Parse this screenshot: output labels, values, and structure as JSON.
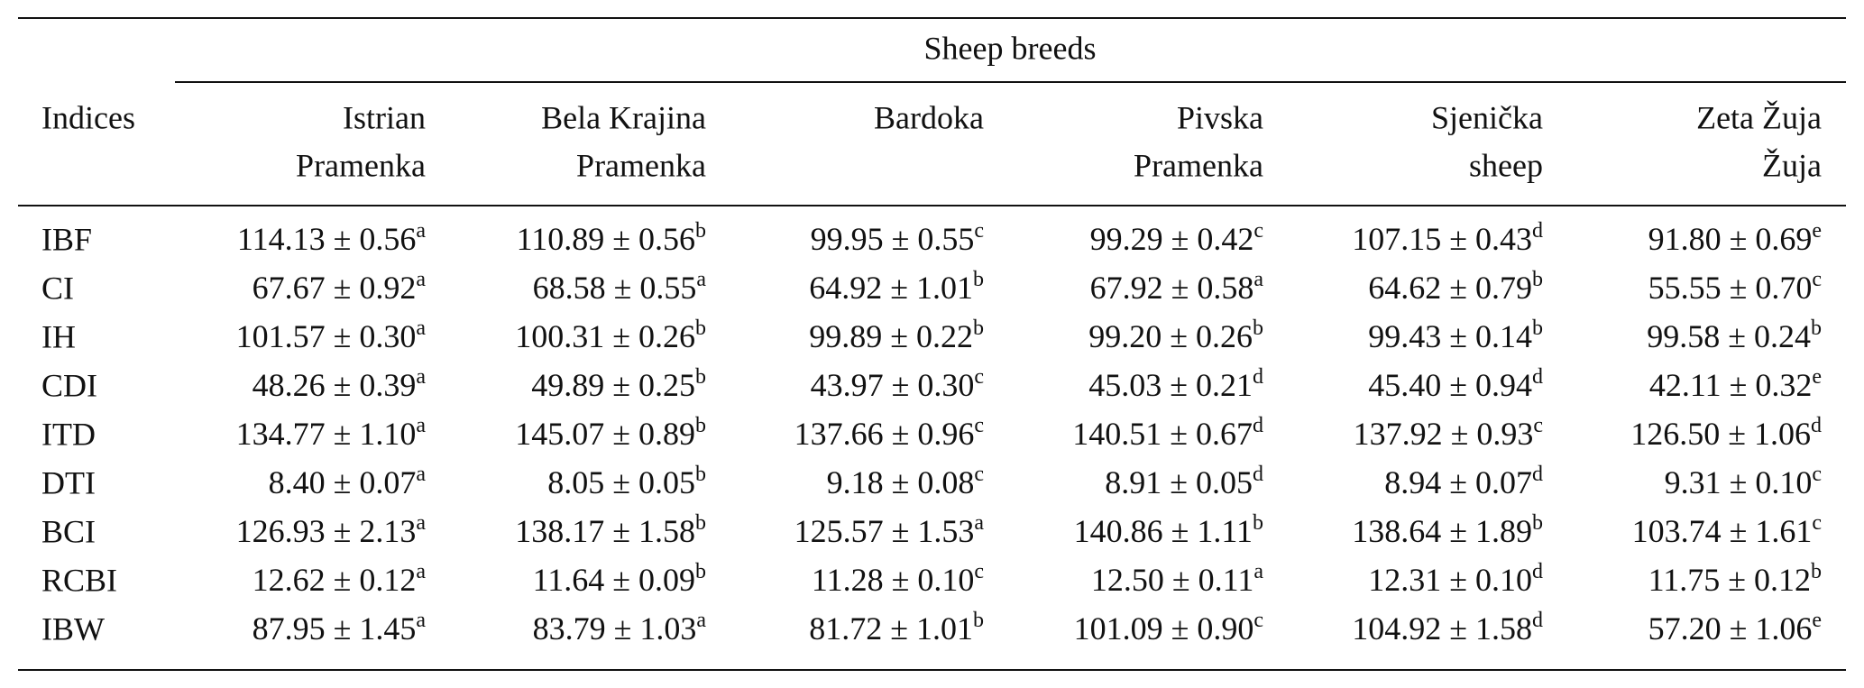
{
  "table": {
    "group_header": "Sheep breeds",
    "row_header": "Indices",
    "columns": [
      [
        "Istrian",
        "Pramenka"
      ],
      [
        "Bela Krajina",
        "Pramenka"
      ],
      [
        "Bardoka"
      ],
      [
        "Pivska",
        "Pramenka"
      ],
      [
        "Sjenička",
        "sheep"
      ],
      [
        "Zeta Žuja",
        "Žuja"
      ]
    ],
    "rows": [
      {
        "index": "IBF",
        "cells": [
          {
            "value": "114.13 ± 0.56",
            "group": "a"
          },
          {
            "value": "110.89 ± 0.56",
            "group": "b"
          },
          {
            "value": "99.95 ± 0.55",
            "group": "c"
          },
          {
            "value": "99.29 ± 0.42",
            "group": "c"
          },
          {
            "value": "107.15 ± 0.43",
            "group": "d"
          },
          {
            "value": "91.80 ± 0.69",
            "group": "e"
          }
        ]
      },
      {
        "index": "CI",
        "cells": [
          {
            "value": "67.67 ± 0.92",
            "group": "a"
          },
          {
            "value": "68.58 ± 0.55",
            "group": "a"
          },
          {
            "value": "64.92 ± 1.01",
            "group": "b"
          },
          {
            "value": "67.92 ± 0.58",
            "group": "a"
          },
          {
            "value": "64.62 ± 0.79",
            "group": "b"
          },
          {
            "value": "55.55 ± 0.70",
            "group": "c"
          }
        ]
      },
      {
        "index": "IH",
        "cells": [
          {
            "value": "101.57 ± 0.30",
            "group": "a"
          },
          {
            "value": "100.31 ± 0.26",
            "group": "b"
          },
          {
            "value": "99.89 ± 0.22",
            "group": "b"
          },
          {
            "value": "99.20 ± 0.26",
            "group": "b"
          },
          {
            "value": "99.43 ± 0.14",
            "group": "b"
          },
          {
            "value": "99.58 ± 0.24",
            "group": "b"
          }
        ]
      },
      {
        "index": "CDI",
        "cells": [
          {
            "value": "48.26 ± 0.39",
            "group": "a"
          },
          {
            "value": "49.89 ± 0.25",
            "group": "b"
          },
          {
            "value": "43.97 ± 0.30",
            "group": "c"
          },
          {
            "value": "45.03 ± 0.21",
            "group": "d"
          },
          {
            "value": "45.40 ± 0.94",
            "group": "d"
          },
          {
            "value": "42.11 ± 0.32",
            "group": "e"
          }
        ]
      },
      {
        "index": "ITD",
        "cells": [
          {
            "value": "134.77 ± 1.10",
            "group": "a"
          },
          {
            "value": "145.07 ± 0.89",
            "group": "b"
          },
          {
            "value": "137.66 ± 0.96",
            "group": "c"
          },
          {
            "value": "140.51 ± 0.67",
            "group": "d"
          },
          {
            "value": "137.92 ± 0.93",
            "group": "c"
          },
          {
            "value": "126.50 ± 1.06",
            "group": "d"
          }
        ]
      },
      {
        "index": "DTI",
        "cells": [
          {
            "value": "8.40 ± 0.07",
            "group": "a"
          },
          {
            "value": "8.05 ± 0.05",
            "group": "b"
          },
          {
            "value": "9.18 ± 0.08",
            "group": "c"
          },
          {
            "value": "8.91 ± 0.05",
            "group": "d"
          },
          {
            "value": "8.94 ± 0.07",
            "group": "d"
          },
          {
            "value": "9.31 ± 0.10",
            "group": "c"
          }
        ]
      },
      {
        "index": "BCI",
        "cells": [
          {
            "value": "126.93 ± 2.13",
            "group": "a"
          },
          {
            "value": "138.17 ± 1.58",
            "group": "b"
          },
          {
            "value": "125.57 ± 1.53",
            "group": "a"
          },
          {
            "value": "140.86 ± 1.11",
            "group": "b"
          },
          {
            "value": "138.64 ± 1.89",
            "group": "b"
          },
          {
            "value": "103.74 ± 1.61",
            "group": "c"
          }
        ]
      },
      {
        "index": "RCBI",
        "cells": [
          {
            "value": "12.62 ± 0.12",
            "group": "a"
          },
          {
            "value": "11.64 ± 0.09",
            "group": "b"
          },
          {
            "value": "11.28 ± 0.10",
            "group": "c"
          },
          {
            "value": "12.50 ± 0.11",
            "group": "a"
          },
          {
            "value": "12.31 ± 0.10",
            "group": "d"
          },
          {
            "value": "11.75 ± 0.12",
            "group": "b"
          }
        ]
      },
      {
        "index": "IBW",
        "cells": [
          {
            "value": "87.95 ± 1.45",
            "group": "a"
          },
          {
            "value": "83.79 ± 1.03",
            "group": "a"
          },
          {
            "value": "81.72 ± 1.01",
            "group": "b"
          },
          {
            "value": "101.09 ± 0.90",
            "group": "c"
          },
          {
            "value": "104.92 ± 1.58",
            "group": "d"
          },
          {
            "value": "57.20 ± 1.06",
            "group": "e"
          }
        ]
      }
    ]
  }
}
